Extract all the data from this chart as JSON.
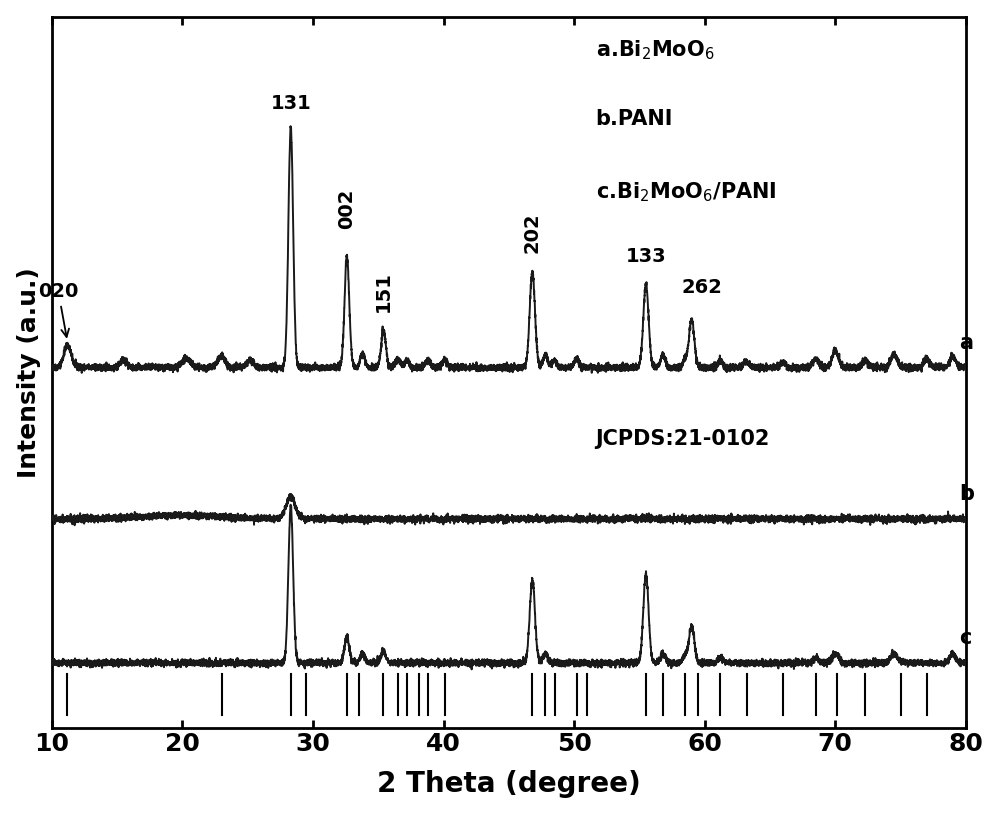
{
  "xlim": [
    10,
    80
  ],
  "ylim": [
    -0.35,
    3.5
  ],
  "xlabel": "2 Theta (degree)",
  "ylabel": "Intensity (a.u.)",
  "xlabel_fontsize": 20,
  "ylabel_fontsize": 18,
  "tick_fontsize": 18,
  "xticks": [
    10,
    20,
    30,
    40,
    50,
    60,
    70,
    80
  ],
  "offsets": {
    "a": 1.6,
    "b": 0.78,
    "c": 0.0
  },
  "background_color": "#ffffff",
  "line_color": "#1a1a1a",
  "noise_seed": 42,
  "jcpds_peaks": [
    11.2,
    23.0,
    28.3,
    29.5,
    32.6,
    33.5,
    35.4,
    36.5,
    37.2,
    38.1,
    38.8,
    40.1,
    46.8,
    47.8,
    48.5,
    50.2,
    51.0,
    55.5,
    56.8,
    58.5,
    59.5,
    61.2,
    63.2,
    66.0,
    68.5,
    70.1,
    72.3,
    75.0,
    77.0
  ]
}
